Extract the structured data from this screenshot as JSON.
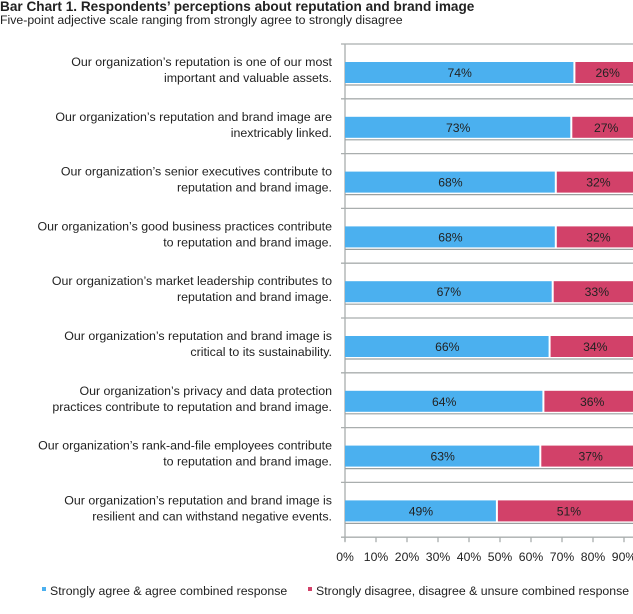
{
  "chart_data": {
    "type": "bar",
    "stacked": true,
    "orientation": "horizontal",
    "title": "Bar Chart 1. Respondents’ perceptions about reputation and brand image",
    "subtitle": "Five-point adjective scale ranging from strongly agree to strongly disagree",
    "xlabel": "",
    "ylabel": "",
    "xlim": [
      0,
      100
    ],
    "x_ticks": [
      "0%",
      "10%",
      "20%",
      "30%",
      "40%",
      "50%",
      "60%",
      "70%",
      "80%",
      "90%"
    ],
    "grid": "horizontal-band-separators",
    "legend_position": "bottom",
    "categories": [
      [
        "Our organization’s reputation is one of our most",
        "important and valuable assets."
      ],
      [
        "Our organization’s reputation and brand image are",
        "inextricably linked."
      ],
      [
        "Our organization’s senior executives contribute to",
        "reputation and brand image."
      ],
      [
        "Our organization’s good business practices contribute",
        "to reputation and brand image."
      ],
      [
        "Our organization’s market leadership contributes to",
        "reputation and brand image."
      ],
      [
        "Our organization’s reputation and brand image is",
        "critical to its sustainability."
      ],
      [
        "Our organization’s privacy and data protection",
        "practices contribute to reputation and brand image."
      ],
      [
        "Our organization’s rank-and-file employees contribute",
        "to reputation and brand image."
      ],
      [
        "Our organization’s reputation and brand image is",
        "resilient and can withstand negative events."
      ]
    ],
    "series": [
      {
        "name": "Strongly agree & agree combined response",
        "color": "#4bb0ef",
        "values": [
          74,
          73,
          68,
          68,
          67,
          66,
          64,
          63,
          49
        ],
        "labels": [
          "74%",
          "73%",
          "68%",
          "68%",
          "67%",
          "66%",
          "64%",
          "63%",
          "49%"
        ]
      },
      {
        "name": "Strongly disagree, disagree & unsure combined response",
        "color": "#d24169",
        "values": [
          26,
          27,
          32,
          32,
          33,
          34,
          36,
          37,
          51
        ],
        "labels": [
          "26%",
          "27%",
          "32%",
          "32%",
          "33%",
          "34%",
          "36%",
          "37%",
          "51%"
        ]
      }
    ]
  }
}
